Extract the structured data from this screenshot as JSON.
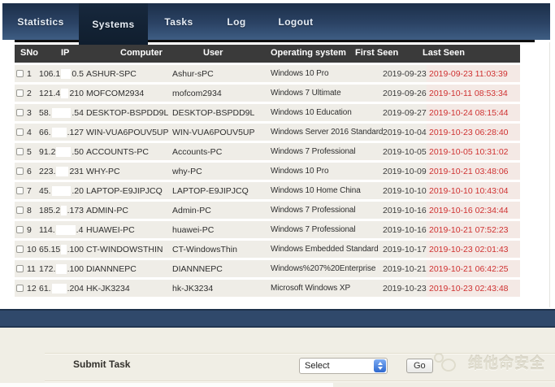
{
  "nav": {
    "tabs": [
      {
        "label": "Statistics",
        "active": false
      },
      {
        "label": "Systems",
        "active": true
      },
      {
        "label": "Tasks",
        "active": false
      },
      {
        "label": "Log",
        "active": false
      },
      {
        "label": "Logout",
        "active": false
      }
    ]
  },
  "table": {
    "columns": [
      "SNo",
      "IP",
      "Computer",
      "User",
      "Operating system",
      "First Seen",
      "Last Seen"
    ],
    "rows": [
      {
        "sno": "1",
        "ip_start": "106.1",
        "ip_end": "0.5",
        "computer": "ASHUR-SPC",
        "user": "Ashur-sPC",
        "os": "Windows 10 Pro",
        "first_seen": "2019-09-23",
        "last_seen": "2019-09-23 11:03:39"
      },
      {
        "sno": "2",
        "ip_start": "121.4",
        "ip_end": "210",
        "computer": "MOFCOM2934",
        "user": "mofcom2934",
        "os": "Windows 7 Ultimate",
        "first_seen": "2019-09-26",
        "last_seen": "2019-10-11 08:53:34"
      },
      {
        "sno": "3",
        "ip_start": "58.",
        "ip_end": ".54",
        "computer": "DESKTOP-BSPDD9L",
        "user": "DESKTOP-BSPDD9L",
        "os": "Windows 10 Education",
        "first_seen": "2019-09-27",
        "last_seen": "2019-10-24 08:15:44"
      },
      {
        "sno": "4",
        "ip_start": "66.",
        "ip_end": ".127",
        "computer": "WIN-VUA6POUV5UP",
        "user": "WIN-VUA6POUV5UP",
        "os": "Windows Server 2016 Standard",
        "first_seen": "2019-10-04",
        "last_seen": "2019-10-23 06:28:40"
      },
      {
        "sno": "5",
        "ip_start": "91.2",
        "ip_end": ".50",
        "computer": "ACCOUNTS-PC",
        "user": "Accounts-PC",
        "os": "Windows 7 Professional",
        "first_seen": "2019-10-05",
        "last_seen": "2019-10-05 10:31:02"
      },
      {
        "sno": "6",
        "ip_start": "223.",
        "ip_end": "231",
        "computer": "WHY-PC",
        "user": "why-PC",
        "os": "Windows 10 Pro",
        "first_seen": "2019-10-09",
        "last_seen": "2019-10-21 03:48:06"
      },
      {
        "sno": "7",
        "ip_start": "45.",
        "ip_end": ".20",
        "computer": "LAPTOP-E9JIPJCQ",
        "user": "LAPTOP-E9JIPJCQ",
        "os": "Windows 10 Home China",
        "first_seen": "2019-10-10",
        "last_seen": "2019-10-10 10:43:04"
      },
      {
        "sno": "8",
        "ip_start": "185.2",
        "ip_end": ".173",
        "computer": "ADMIN-PC",
        "user": "Admin-PC",
        "os": "Windows 7 Professional",
        "first_seen": "2019-10-16",
        "last_seen": "2019-10-16 02:34:44"
      },
      {
        "sno": "9",
        "ip_start": "114.",
        "ip_end": ".4",
        "computer": "HUAWEI-PC",
        "user": "huawei-PC",
        "os": "Windows 7 Professional",
        "first_seen": "2019-10-16",
        "last_seen": "2019-10-21 07:52:23"
      },
      {
        "sno": "10",
        "ip_start": "65.15",
        "ip_end": ".100",
        "computer": "CT-WINDOWSTHIN",
        "user": "CT-WindowsThin",
        "os": "Windows Embedded Standard",
        "first_seen": "2019-10-17",
        "last_seen": "2019-10-23 02:01:43"
      },
      {
        "sno": "11",
        "ip_start": "172.",
        "ip_end": ".100",
        "computer": "DIANNNEPC",
        "user": "DIANNNEPC",
        "os": "Windows%207%20Enterprise",
        "first_seen": "2019-10-21",
        "last_seen": "2019-10-21 06:42:25"
      },
      {
        "sno": "12",
        "ip_start": "61.",
        "ip_end": ".204",
        "computer": "HK-JK3234",
        "user": "hk-JK3234",
        "os": "Microsoft Windows XP",
        "first_seen": "2019-10-23",
        "last_seen": "2019-10-23 02:43:48"
      }
    ]
  },
  "footer": {
    "submit_label": "Submit Task",
    "select_value": "Select",
    "go_label": "Go"
  },
  "watermark": {
    "text": "维他命安全"
  },
  "colors": {
    "nav_top": "#1c2f49",
    "nav_bottom": "#3e5d83",
    "active_tab": "#13233a",
    "header_bg": "#3a3a3a",
    "row_bg": "#efede7",
    "alert_red": "#cf3131",
    "footer_bar": "#30496b",
    "footer_area": "#f0eee5"
  }
}
